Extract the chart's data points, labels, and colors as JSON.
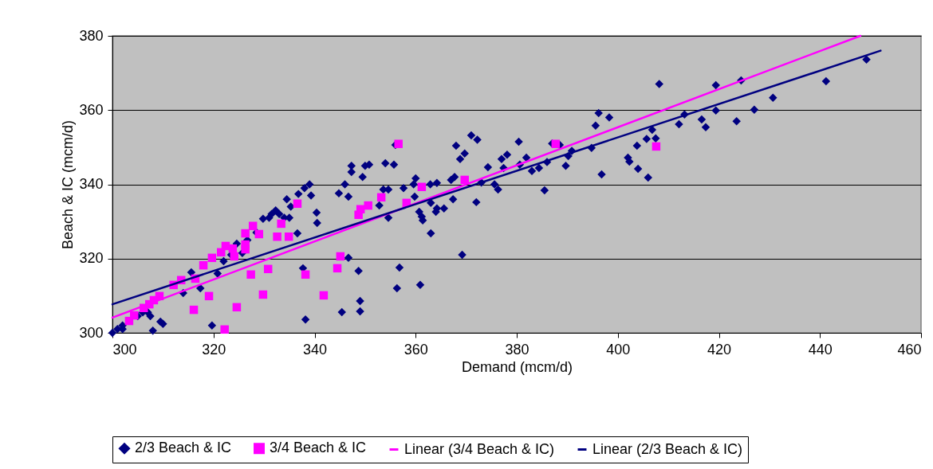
{
  "chart_data": {
    "type": "scatter",
    "xlabel": "Demand (mcm/d)",
    "ylabel": "Beach & IC (mcm/d)",
    "xlim": [
      300,
      460
    ],
    "xticks": [
      300,
      320,
      340,
      360,
      380,
      400,
      420,
      440,
      460
    ],
    "ylim": [
      300,
      380
    ],
    "yticks": [
      300,
      320,
      340,
      360,
      380
    ],
    "grid": "y",
    "legend": "bottom",
    "series": [
      {
        "name": "2/3 Beach & IC",
        "type": "scatter",
        "marker": "diamond",
        "color": "#000080",
        "x": [
          300,
          301,
          302,
          302,
          305,
          306,
          307,
          307.5,
          308,
          309.5,
          310,
          314,
          315.6,
          317.4,
          319.7,
          320.8,
          322,
          323.5,
          324.6,
          325.7,
          326.7,
          328.5,
          329.8,
          331,
          331.5,
          332.3,
          333,
          334,
          335,
          334.5,
          335.3,
          336.6,
          336.8,
          338,
          339,
          339.3,
          340.4,
          340.5,
          337.7,
          338.2,
          344.8,
          346,
          346.7,
          345.4,
          347.3,
          347.3,
          346.7,
          348.7,
          349,
          349,
          349.5,
          350,
          350.8,
          352.8,
          353.6,
          354,
          354.6,
          354.6,
          355.7,
          356.3,
          356,
          356.8,
          360.9,
          357.6,
          359.6,
          360,
          359.8,
          360.7,
          361.2,
          361.4,
          363,
          362.9,
          364.2,
          364,
          363,
          364.2,
          365.6,
          367.4,
          367,
          367.7,
          368,
          368.8,
          369.2,
          369.7,
          371,
          372.2,
          372,
          373,
          374.3,
          375.6,
          376.3,
          377.4,
          378.1,
          377,
          380.4,
          380.6,
          381.9,
          383,
          384.4,
          385.5,
          386,
          387,
          388.5,
          390.2,
          389.7,
          390.9,
          394.8,
          395.6,
          396.2,
          396.8,
          398.3,
          402,
          402.3,
          403.8,
          404,
          405.7,
          406,
          406.8,
          407.5,
          408.2,
          412.1,
          413.2,
          416.6,
          417.4,
          419.4,
          419.4,
          423.5,
          424.4,
          427,
          430.7,
          441.2,
          449.2
        ],
        "values": [
          300,
          301,
          302,
          301,
          304.5,
          305.5,
          305.5,
          304.5,
          300.6,
          303,
          302.4,
          310.7,
          316.3,
          312,
          302,
          316,
          319.3,
          321,
          324,
          321.5,
          325,
          327,
          330.7,
          331,
          332,
          333,
          332,
          331,
          331,
          336,
          334,
          326.8,
          337.4,
          339,
          340,
          337,
          332.4,
          329.6,
          317.4,
          303.6,
          337.6,
          340,
          336.7,
          305.6,
          345,
          343.3,
          320.2,
          316.7,
          305.8,
          308.6,
          342,
          345,
          345.3,
          334.3,
          338.6,
          345.7,
          331,
          338.6,
          345.3,
          312,
          350.6,
          317.6,
          312.9,
          339,
          340,
          341.6,
          336.7,
          332.6,
          331.3,
          330.3,
          335,
          340,
          340.4,
          332.6,
          326.8,
          333.5,
          333.5,
          336,
          341.2,
          342,
          350.4,
          346.8,
          321,
          348.3,
          353.2,
          352,
          335.2,
          340.5,
          344.6,
          340,
          338.6,
          344.4,
          348,
          346.8,
          351.5,
          345.3,
          347.2,
          343.6,
          344.4,
          338.4,
          346,
          351,
          350.6,
          347.6,
          345,
          349,
          349.8,
          355.8,
          359.2,
          342.7,
          358,
          347.2,
          346.1,
          350.4,
          344.2,
          352.2,
          341.8,
          354.7,
          352.4,
          367,
          356.2,
          358.8,
          357.5,
          355.4,
          359.9,
          366.7,
          357,
          368,
          360.1,
          363.3,
          367.8,
          373.6
        ]
      },
      {
        "name": "3/4 Beach & IC",
        "type": "scatter",
        "marker": "square",
        "color": "#ff00ff",
        "x": [
          303.3,
          304.3,
          306.2,
          307.3,
          308.2,
          309.3,
          312.1,
          313.6,
          316.4,
          316.1,
          318,
          319.1,
          319.7,
          321.5,
          322.4,
          323.8,
          322.2,
          324.6,
          324.1,
          326.3,
          326.3,
          326.3,
          327.8,
          329,
          327.4,
          329.8,
          356.6,
          336.6,
          333.4,
          332.6,
          334.9,
          330.8,
          338.2,
          345.1,
          344.5,
          341.8,
          353.2,
          350.6,
          349.1,
          348.7,
          358.2,
          361.2,
          369.7,
          387.7,
          407.6
        ],
        "values": [
          303.2,
          304.7,
          306.7,
          307.7,
          308.8,
          309.9,
          312.9,
          314.2,
          314.6,
          306.2,
          318.2,
          309.9,
          320.2,
          321.7,
          323.4,
          322.7,
          300.9,
          306.9,
          320.6,
          323.8,
          322.5,
          326.8,
          328.8,
          326.6,
          315.7,
          310.3,
          350.9,
          334.8,
          329.4,
          325.9,
          325.9,
          317.2,
          315.7,
          320.6,
          317.4,
          310.1,
          336.5,
          334.3,
          333.3,
          331.8,
          335,
          339.3,
          341.2,
          350.9,
          350.2
        ]
      },
      {
        "name": "Linear (3/4 Beach & IC)",
        "type": "line",
        "marker": "none",
        "line_style": "solid",
        "color": "#ff00ff",
        "x": [
          300,
          448
        ],
        "values": [
          304.1,
          380
        ]
      },
      {
        "name": "Linear (2/3 Beach & IC)",
        "type": "line",
        "marker": "none",
        "line_style": "solid",
        "color": "#000080",
        "x": [
          300,
          452
        ],
        "values": [
          307.7,
          376
        ]
      }
    ]
  }
}
